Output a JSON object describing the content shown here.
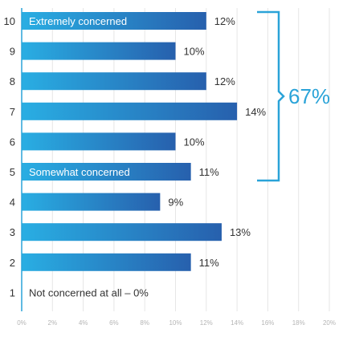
{
  "chart_data": {
    "type": "bar",
    "orientation": "horizontal",
    "categories": [
      "10",
      "9",
      "8",
      "7",
      "6",
      "5",
      "4",
      "3",
      "2",
      "1"
    ],
    "values": [
      12,
      10,
      12,
      14,
      10,
      11,
      9,
      13,
      11,
      0
    ],
    "value_labels": [
      "12%",
      "10%",
      "12%",
      "14%",
      "10%",
      "11%",
      "9%",
      "13%",
      "11%",
      ""
    ],
    "bar_annotations": {
      "10": "Extremely concerned",
      "5": "Somewhat concerned",
      "1": "Not concerned at all – 0%"
    },
    "bracket": {
      "from_category": "10",
      "to_category": "5",
      "label": "67%"
    },
    "xlim": [
      0,
      20
    ],
    "xticks": [
      "0%",
      "2%",
      "4%",
      "6%",
      "8%",
      "10%",
      "12%",
      "14%",
      "16%",
      "18%",
      "20%"
    ],
    "grid": true,
    "colors": {
      "bar_light": "#29aee3",
      "bar_dark": "#2760ad",
      "axis": "#2aa3d8",
      "bracket": "#2aa3d8",
      "grid": "#e6e6e6"
    }
  }
}
